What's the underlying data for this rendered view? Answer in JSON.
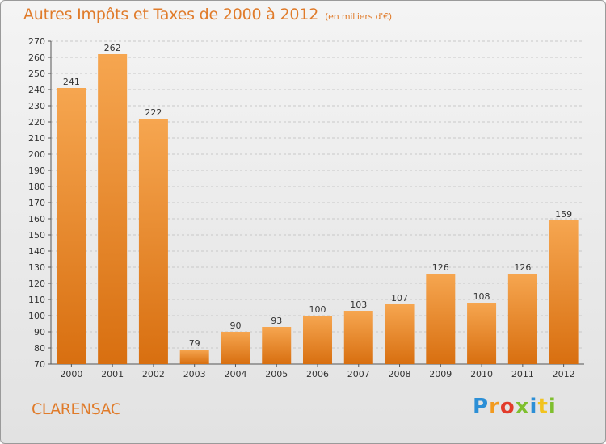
{
  "header": {
    "title": "Autres Impôts et Taxes de 2000 à 2012",
    "subtitle": "(en milliers d'€)"
  },
  "footer": {
    "commune": "CLARENSAC",
    "logo_letters": [
      "P",
      "r",
      "o",
      "x",
      "i",
      "t",
      "i"
    ],
    "logo_colors": [
      "#2c8fd6",
      "#f29a1f",
      "#e23b2b",
      "#7fbf2e",
      "#2c8fd6",
      "#f2c31f",
      "#7fbf2e"
    ]
  },
  "colors": {
    "bar_light": "#f6a650",
    "bar_dark": "#d86f10",
    "accent": "#e07b2a"
  },
  "chart_data": {
    "type": "bar",
    "title": "Autres Impôts et Taxes de 2000 à 2012",
    "subtitle": "(en milliers d'€)",
    "categories": [
      "2000",
      "2001",
      "2002",
      "2003",
      "2004",
      "2005",
      "2006",
      "2007",
      "2008",
      "2009",
      "2010",
      "2011",
      "2012"
    ],
    "values": [
      241,
      262,
      222,
      79,
      90,
      93,
      100,
      103,
      107,
      126,
      108,
      126,
      159
    ],
    "ylim": [
      70,
      270
    ],
    "yticks": [
      70,
      80,
      90,
      100,
      110,
      120,
      130,
      140,
      150,
      160,
      170,
      180,
      190,
      200,
      210,
      220,
      230,
      240,
      250,
      260,
      270
    ],
    "grid": true,
    "legend": "none"
  }
}
